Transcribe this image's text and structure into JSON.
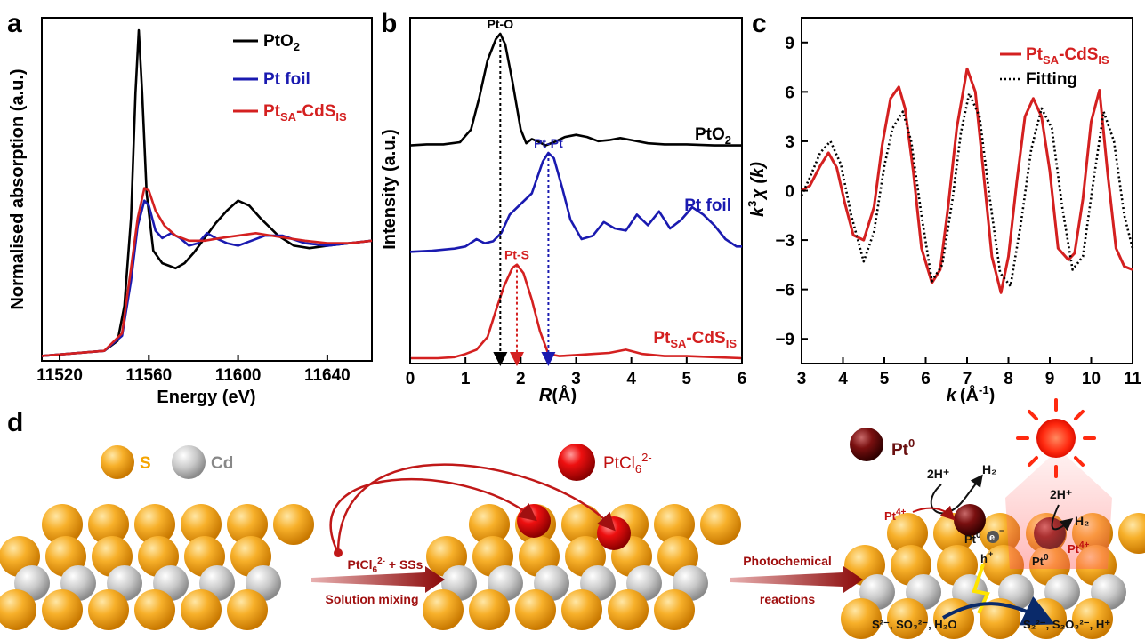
{
  "panels": {
    "a": "a",
    "b": "b",
    "c": "c",
    "d": "d"
  },
  "colors": {
    "black": "#000000",
    "blue": "#1a1ab0",
    "red": "#d42020",
    "fit": "#000000"
  },
  "chart_data": [
    {
      "panel": "a",
      "type": "line",
      "xlabel": "Energy (eV)",
      "ylabel": "Normalised absorption (a.u.)",
      "xlim": [
        11512,
        11660
      ],
      "x_ticks": [
        11520,
        11560,
        11600,
        11640
      ],
      "x_tick_labels": [
        "11520",
        "11560",
        "11600",
        "11640"
      ],
      "legend": {
        "placement": "top-right"
      },
      "series": [
        {
          "name_main": "PtO",
          "name_sub": "2",
          "color": "black",
          "x": [
            11512,
            11540,
            11546,
            11549,
            11552,
            11554,
            11555.5,
            11557,
            11559,
            11562,
            11566,
            11569,
            11572,
            11576,
            11580,
            11585,
            11590,
            11595,
            11600,
            11605,
            11610,
            11618,
            11625,
            11632,
            11640,
            11650,
            11660
          ],
          "y": [
            0.0,
            0.02,
            0.06,
            0.2,
            0.55,
            1.05,
            1.3,
            1.05,
            0.65,
            0.42,
            0.37,
            0.36,
            0.35,
            0.37,
            0.41,
            0.47,
            0.53,
            0.58,
            0.62,
            0.6,
            0.55,
            0.48,
            0.44,
            0.43,
            0.44,
            0.45,
            0.46
          ]
        },
        {
          "name_main": "Pt foil",
          "name_sub": "",
          "color": "blue",
          "x": [
            11512,
            11540,
            11548,
            11552,
            11555,
            11558,
            11560,
            11563,
            11566,
            11570,
            11574,
            11578,
            11582,
            11586,
            11590,
            11595,
            11600,
            11606,
            11612,
            11620,
            11630,
            11640,
            11650,
            11660
          ],
          "y": [
            0.0,
            0.02,
            0.08,
            0.3,
            0.52,
            0.62,
            0.6,
            0.5,
            0.47,
            0.49,
            0.47,
            0.44,
            0.45,
            0.49,
            0.47,
            0.45,
            0.44,
            0.46,
            0.48,
            0.48,
            0.45,
            0.44,
            0.45,
            0.46
          ]
        },
        {
          "name_main": "Pt",
          "name_sub": "SA",
          "name_after": "-CdS",
          "name_sub2": "IS",
          "color": "red",
          "x": [
            11512,
            11540,
            11548,
            11552,
            11555,
            11558,
            11560,
            11563,
            11567,
            11572,
            11578,
            11585,
            11592,
            11600,
            11608,
            11615,
            11622,
            11630,
            11640,
            11650,
            11660
          ],
          "y": [
            0.0,
            0.02,
            0.09,
            0.35,
            0.55,
            0.67,
            0.66,
            0.58,
            0.52,
            0.48,
            0.46,
            0.46,
            0.47,
            0.48,
            0.49,
            0.48,
            0.47,
            0.46,
            0.45,
            0.45,
            0.46
          ]
        }
      ]
    },
    {
      "panel": "b",
      "type": "line",
      "xlabel_main": "R",
      "xlabel_rest": "(Å)",
      "ylabel": "Intensity (a.u.)",
      "xlim": [
        0,
        6
      ],
      "x_ticks": [
        0,
        1,
        2,
        3,
        4,
        5,
        6
      ],
      "x_tick_labels": [
        "0",
        "1",
        "2",
        "3",
        "4",
        "5",
        "6"
      ],
      "annotations": [
        {
          "text": "Pt-O",
          "x": 1.63,
          "color": "black"
        },
        {
          "text": "Pt-Pt",
          "x": 2.5,
          "color": "blue"
        },
        {
          "text": "Pt-S",
          "x": 1.93,
          "color": "red"
        }
      ],
      "series": [
        {
          "name_main": "PtO",
          "name_sub": "2",
          "color": "black",
          "offset": 2.0,
          "x": [
            0,
            0.3,
            0.6,
            0.9,
            1.1,
            1.25,
            1.4,
            1.55,
            1.63,
            1.72,
            1.85,
            2.0,
            2.1,
            2.2,
            2.3,
            2.45,
            2.6,
            2.8,
            3.0,
            3.2,
            3.4,
            3.6,
            3.8,
            4.0,
            4.3,
            4.6,
            5.0,
            5.5,
            6.0
          ],
          "y": [
            0,
            0.01,
            0.01,
            0.03,
            0.15,
            0.45,
            0.8,
            1.0,
            1.05,
            0.95,
            0.6,
            0.15,
            0.02,
            0.06,
            0.04,
            0.0,
            0.03,
            0.08,
            0.1,
            0.08,
            0.04,
            0.05,
            0.07,
            0.05,
            0.02,
            0.01,
            0.01,
            0.0,
            0.0
          ]
        },
        {
          "name_main": "Pt foil",
          "name_sub": "",
          "color": "blue",
          "offset": 1.0,
          "x": [
            0,
            0.4,
            0.8,
            1.0,
            1.2,
            1.35,
            1.5,
            1.65,
            1.8,
            2.0,
            2.2,
            2.4,
            2.5,
            2.6,
            2.75,
            2.9,
            3.1,
            3.3,
            3.5,
            3.7,
            3.9,
            4.1,
            4.3,
            4.5,
            4.7,
            4.9,
            5.1,
            5.3,
            5.5,
            5.7,
            5.9,
            6.0
          ],
          "y": [
            0,
            0.01,
            0.03,
            0.05,
            0.12,
            0.08,
            0.1,
            0.18,
            0.35,
            0.45,
            0.55,
            0.85,
            0.93,
            0.88,
            0.6,
            0.3,
            0.12,
            0.15,
            0.28,
            0.22,
            0.2,
            0.35,
            0.25,
            0.38,
            0.22,
            0.3,
            0.42,
            0.35,
            0.25,
            0.12,
            0.05,
            0.05
          ]
        },
        {
          "name_main": "Pt",
          "name_sub": "SA",
          "name_after": "-CdS",
          "name_sub2": "IS",
          "color": "red",
          "offset": 0.0,
          "x": [
            0,
            0.5,
            0.8,
            1.0,
            1.2,
            1.4,
            1.55,
            1.7,
            1.85,
            1.93,
            2.05,
            2.2,
            2.35,
            2.5,
            2.7,
            3.0,
            3.3,
            3.6,
            3.9,
            4.2,
            4.6,
            5.0,
            5.5,
            6.0
          ],
          "y": [
            0,
            0.0,
            0.01,
            0.04,
            0.08,
            0.2,
            0.45,
            0.68,
            0.85,
            0.88,
            0.8,
            0.55,
            0.25,
            0.04,
            0.02,
            0.03,
            0.04,
            0.05,
            0.08,
            0.04,
            0.02,
            0.02,
            0.01,
            0.0
          ]
        }
      ]
    },
    {
      "panel": "c",
      "type": "line",
      "xlabel_main": "k",
      "xlabel_rest": "(Å",
      "xlabel_sup": "-1",
      "xlabel_end": ")",
      "ylabel_main": "k",
      "ylabel_sup": "3",
      "ylabel_rest": "χ (k)",
      "xlim": [
        3,
        11
      ],
      "ylim": [
        -10.5,
        10.5
      ],
      "x_ticks": [
        3,
        4,
        5,
        6,
        7,
        8,
        9,
        10,
        11
      ],
      "x_tick_labels": [
        "3",
        "4",
        "5",
        "6",
        "7",
        "8",
        "9",
        "10",
        "11"
      ],
      "y_ticks": [
        -9,
        -6,
        -3,
        0,
        3,
        6,
        9
      ],
      "y_tick_labels": [
        "−9",
        "−6",
        "−3",
        "0",
        "3",
        "6",
        "9"
      ],
      "legend": {
        "placement": "top-right"
      },
      "series": [
        {
          "name_main": "Pt",
          "name_sub": "SA",
          "name_after": "-CdS",
          "name_sub2": "IS",
          "color": "red",
          "style": "solid",
          "x": [
            3.0,
            3.2,
            3.45,
            3.65,
            3.85,
            4.05,
            4.25,
            4.5,
            4.75,
            4.95,
            5.15,
            5.35,
            5.5,
            5.7,
            5.9,
            6.15,
            6.35,
            6.55,
            6.75,
            7.0,
            7.2,
            7.4,
            7.6,
            7.82,
            8.0,
            8.2,
            8.4,
            8.6,
            8.8,
            9.0,
            9.2,
            9.45,
            9.6,
            9.8,
            10.0,
            10.2,
            10.4,
            10.6,
            10.8,
            11.0
          ],
          "y": [
            0.0,
            0.3,
            1.5,
            2.3,
            1.4,
            -0.8,
            -2.7,
            -3.0,
            -1.0,
            2.8,
            5.6,
            6.3,
            5.0,
            1.2,
            -3.5,
            -5.6,
            -4.8,
            -0.8,
            3.8,
            7.4,
            6.0,
            1.0,
            -4.0,
            -6.2,
            -4.0,
            0.5,
            4.5,
            5.6,
            4.5,
            1.2,
            -3.5,
            -4.2,
            -3.8,
            -0.5,
            4.2,
            6.1,
            1.0,
            -3.5,
            -4.6,
            -4.8
          ]
        },
        {
          "name_main": "Fitting",
          "name_sub": "",
          "color": "fit",
          "style": "dotted",
          "x": [
            3.0,
            3.2,
            3.45,
            3.7,
            3.95,
            4.2,
            4.5,
            4.75,
            5.0,
            5.2,
            5.45,
            5.65,
            5.9,
            6.15,
            6.4,
            6.65,
            6.85,
            7.05,
            7.3,
            7.55,
            7.8,
            8.05,
            8.3,
            8.55,
            8.8,
            9.05,
            9.3,
            9.55,
            9.8,
            10.05,
            10.3,
            10.55,
            10.8,
            11.0
          ],
          "y": [
            -0.3,
            0.8,
            2.3,
            3.0,
            1.6,
            -1.5,
            -4.3,
            -2.5,
            1.5,
            3.8,
            4.8,
            3.0,
            -1.5,
            -5.5,
            -4.5,
            -0.5,
            3.5,
            5.9,
            4.5,
            -0.5,
            -5.0,
            -5.8,
            -2.0,
            2.5,
            5.0,
            3.8,
            -1.0,
            -4.8,
            -4.0,
            0.5,
            4.8,
            3.0,
            -1.5,
            -3.5
          ]
        }
      ]
    }
  ],
  "schematic": {
    "legend_s": "S",
    "legend_cd": "Cd",
    "ptcl_main": "PtCl",
    "ptcl_sub": "6",
    "ptcl_sup": "2-",
    "pt0_main": "Pt",
    "pt0_sup": "0",
    "arrow1_top_main": "PtCl",
    "arrow1_top_sub": "6",
    "arrow1_top_sup": "2-",
    "arrow1_top_rest": " + SSs",
    "arrow1_bottom": "Solution mixing",
    "arrow2_top": "Photochemical",
    "arrow2_bottom": "reactions",
    "h2_left_in": "2H⁺",
    "h2_left_out": "H₂",
    "h2_right_in": "2H⁺",
    "h2_right_out": "H₂",
    "pt4_left_main": "Pt",
    "pt4_left_sup": "4+",
    "pt4_right_main": "Pt",
    "pt4_right_sup": "4+",
    "pt0_left_main": "Pt",
    "pt0_left_sup": "0",
    "pt0_right_main": "Pt",
    "pt0_right_sup": "0",
    "electron": "e",
    "electron_sup": "−",
    "hole": "h",
    "hole_sup": "+",
    "reactants": "S²⁻, SO₃²⁻, H₂O",
    "products": "S₂²⁻, S₂O₃²⁻, H⁺"
  }
}
